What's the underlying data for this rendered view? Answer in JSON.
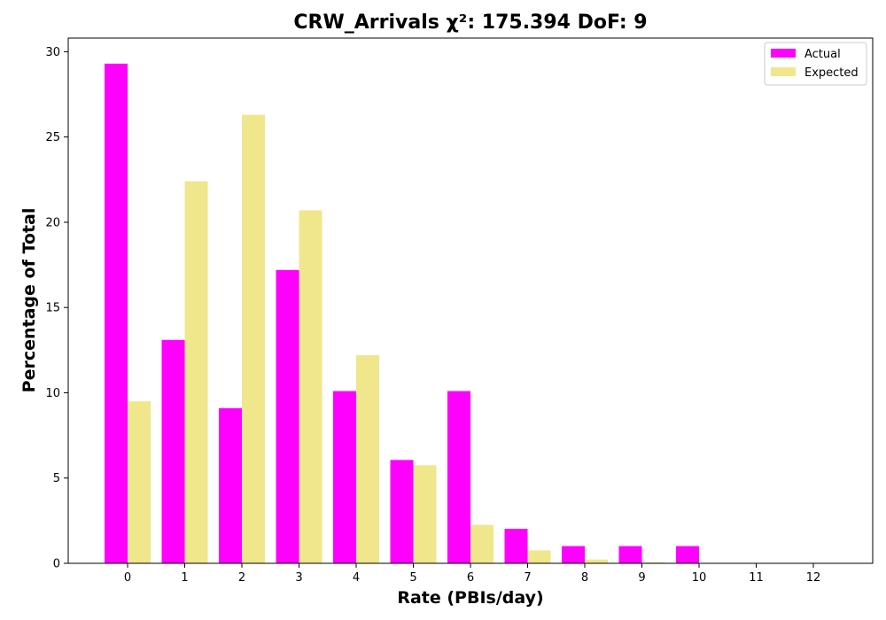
{
  "chart_data": {
    "type": "bar",
    "title": "CRW_Arrivals χ²: 175.394 DoF: 9",
    "xlabel": "Rate (PBIs/day)",
    "ylabel": "Percentage of Total",
    "categories": [
      "0",
      "1",
      "2",
      "3",
      "4",
      "5",
      "6",
      "7",
      "8",
      "9",
      "10",
      "11",
      "12"
    ],
    "series": [
      {
        "name": "Actual",
        "color": "#ff00ff",
        "values": [
          29.3,
          13.1,
          9.1,
          17.2,
          10.1,
          6.06,
          10.1,
          2.02,
          1.01,
          1.01,
          1.01,
          0,
          0
        ]
      },
      {
        "name": "Expected",
        "color": "#f0e68c",
        "values": [
          9.5,
          22.4,
          26.3,
          20.7,
          12.2,
          5.75,
          2.26,
          0.76,
          0.22,
          0.06,
          0.01,
          0,
          0
        ]
      }
    ],
    "ylim": [
      0,
      30.8
    ],
    "yticks": [
      0,
      5,
      10,
      15,
      20,
      25,
      30
    ],
    "legend_position": "top-right",
    "grid": false
  }
}
